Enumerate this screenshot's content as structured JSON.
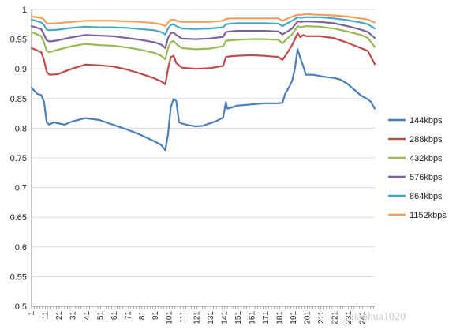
{
  "chart_data": {
    "type": "line",
    "title": "",
    "xlabel": "",
    "ylabel": "",
    "ylim": [
      0.5,
      1.0
    ],
    "xlim": [
      1,
      250
    ],
    "yticks": [
      "0.5",
      "0.55",
      "0.6",
      "0.65",
      "0.7",
      "0.75",
      "0.8",
      "0.85",
      "0.9",
      "0.95",
      "1"
    ],
    "yticks_values": [
      0.5,
      0.55,
      0.6,
      0.65,
      0.7,
      0.75,
      0.8,
      0.85,
      0.9,
      0.95,
      1.0
    ],
    "xticks": [
      "1",
      "11",
      "21",
      "31",
      "41",
      "51",
      "61",
      "71",
      "81",
      "91",
      "101",
      "111",
      "121",
      "131",
      "141",
      "151",
      "161",
      "171",
      "181",
      "191",
      "201",
      "211",
      "221",
      "231",
      "241"
    ],
    "grid": "horizontal",
    "legend_position": "right",
    "series": [
      {
        "name": "144kbps",
        "color": "#4a7ebb",
        "points": [
          [
            1,
            0.868
          ],
          [
            5,
            0.858
          ],
          [
            8,
            0.856
          ],
          [
            10,
            0.845
          ],
          [
            12,
            0.81
          ],
          [
            14,
            0.806
          ],
          [
            17,
            0.81
          ],
          [
            21,
            0.808
          ],
          [
            25,
            0.806
          ],
          [
            30,
            0.811
          ],
          [
            40,
            0.817
          ],
          [
            50,
            0.814
          ],
          [
            60,
            0.806
          ],
          [
            70,
            0.798
          ],
          [
            80,
            0.789
          ],
          [
            90,
            0.778
          ],
          [
            95,
            0.772
          ],
          [
            98,
            0.763
          ],
          [
            100,
            0.79
          ],
          [
            102,
            0.835
          ],
          [
            104,
            0.849
          ],
          [
            106,
            0.846
          ],
          [
            108,
            0.81
          ],
          [
            110,
            0.808
          ],
          [
            115,
            0.805
          ],
          [
            120,
            0.803
          ],
          [
            125,
            0.804
          ],
          [
            130,
            0.808
          ],
          [
            135,
            0.812
          ],
          [
            140,
            0.818
          ],
          [
            142,
            0.844
          ],
          [
            143,
            0.833
          ],
          [
            145,
            0.834
          ],
          [
            150,
            0.838
          ],
          [
            160,
            0.84
          ],
          [
            170,
            0.842
          ],
          [
            180,
            0.842
          ],
          [
            183,
            0.843
          ],
          [
            185,
            0.858
          ],
          [
            188,
            0.87
          ],
          [
            190,
            0.88
          ],
          [
            192,
            0.9
          ],
          [
            194,
            0.933
          ],
          [
            196,
            0.918
          ],
          [
            198,
            0.905
          ],
          [
            200,
            0.89
          ],
          [
            205,
            0.89
          ],
          [
            210,
            0.888
          ],
          [
            215,
            0.886
          ],
          [
            220,
            0.885
          ],
          [
            225,
            0.882
          ],
          [
            230,
            0.875
          ],
          [
            235,
            0.865
          ],
          [
            240,
            0.855
          ],
          [
            244,
            0.85
          ],
          [
            247,
            0.845
          ],
          [
            250,
            0.833
          ]
        ]
      },
      {
        "name": "288kbps",
        "color": "#be4b48",
        "points": [
          [
            1,
            0.935
          ],
          [
            8,
            0.928
          ],
          [
            10,
            0.915
          ],
          [
            12,
            0.895
          ],
          [
            14,
            0.89
          ],
          [
            20,
            0.891
          ],
          [
            30,
            0.9
          ],
          [
            40,
            0.907
          ],
          [
            50,
            0.906
          ],
          [
            60,
            0.904
          ],
          [
            70,
            0.899
          ],
          [
            80,
            0.892
          ],
          [
            90,
            0.884
          ],
          [
            95,
            0.879
          ],
          [
            98,
            0.874
          ],
          [
            100,
            0.9
          ],
          [
            102,
            0.92
          ],
          [
            104,
            0.922
          ],
          [
            106,
            0.91
          ],
          [
            110,
            0.902
          ],
          [
            120,
            0.9
          ],
          [
            130,
            0.901
          ],
          [
            140,
            0.905
          ],
          [
            142,
            0.92
          ],
          [
            145,
            0.921
          ],
          [
            150,
            0.922
          ],
          [
            160,
            0.923
          ],
          [
            170,
            0.922
          ],
          [
            180,
            0.92
          ],
          [
            183,
            0.915
          ],
          [
            186,
            0.925
          ],
          [
            190,
            0.94
          ],
          [
            194,
            0.96
          ],
          [
            196,
            0.953
          ],
          [
            198,
            0.957
          ],
          [
            200,
            0.955
          ],
          [
            210,
            0.955
          ],
          [
            220,
            0.952
          ],
          [
            230,
            0.944
          ],
          [
            240,
            0.935
          ],
          [
            245,
            0.93
          ],
          [
            250,
            0.908
          ]
        ]
      },
      {
        "name": "432kbps",
        "color": "#98b954",
        "points": [
          [
            1,
            0.962
          ],
          [
            8,
            0.955
          ],
          [
            10,
            0.945
          ],
          [
            12,
            0.93
          ],
          [
            14,
            0.928
          ],
          [
            20,
            0.932
          ],
          [
            30,
            0.938
          ],
          [
            40,
            0.942
          ],
          [
            50,
            0.94
          ],
          [
            60,
            0.939
          ],
          [
            70,
            0.936
          ],
          [
            80,
            0.932
          ],
          [
            90,
            0.927
          ],
          [
            95,
            0.922
          ],
          [
            98,
            0.916
          ],
          [
            100,
            0.935
          ],
          [
            102,
            0.945
          ],
          [
            104,
            0.947
          ],
          [
            106,
            0.942
          ],
          [
            110,
            0.935
          ],
          [
            120,
            0.933
          ],
          [
            130,
            0.934
          ],
          [
            140,
            0.938
          ],
          [
            142,
            0.947
          ],
          [
            145,
            0.948
          ],
          [
            150,
            0.949
          ],
          [
            160,
            0.95
          ],
          [
            170,
            0.95
          ],
          [
            180,
            0.949
          ],
          [
            183,
            0.943
          ],
          [
            186,
            0.95
          ],
          [
            190,
            0.958
          ],
          [
            194,
            0.972
          ],
          [
            196,
            0.97
          ],
          [
            200,
            0.972
          ],
          [
            210,
            0.971
          ],
          [
            220,
            0.968
          ],
          [
            230,
            0.963
          ],
          [
            240,
            0.957
          ],
          [
            245,
            0.952
          ],
          [
            250,
            0.937
          ]
        ]
      },
      {
        "name": "576kbps",
        "color": "#7d60a0",
        "points": [
          [
            1,
            0.972
          ],
          [
            8,
            0.967
          ],
          [
            10,
            0.958
          ],
          [
            12,
            0.948
          ],
          [
            14,
            0.946
          ],
          [
            20,
            0.948
          ],
          [
            30,
            0.953
          ],
          [
            40,
            0.957
          ],
          [
            50,
            0.956
          ],
          [
            60,
            0.955
          ],
          [
            70,
            0.952
          ],
          [
            80,
            0.949
          ],
          [
            90,
            0.945
          ],
          [
            95,
            0.941
          ],
          [
            98,
            0.935
          ],
          [
            100,
            0.952
          ],
          [
            102,
            0.96
          ],
          [
            104,
            0.961
          ],
          [
            106,
            0.957
          ],
          [
            110,
            0.951
          ],
          [
            120,
            0.95
          ],
          [
            130,
            0.951
          ],
          [
            140,
            0.954
          ],
          [
            142,
            0.962
          ],
          [
            145,
            0.963
          ],
          [
            150,
            0.964
          ],
          [
            160,
            0.964
          ],
          [
            170,
            0.964
          ],
          [
            180,
            0.963
          ],
          [
            183,
            0.958
          ],
          [
            186,
            0.962
          ],
          [
            190,
            0.968
          ],
          [
            194,
            0.98
          ],
          [
            196,
            0.979
          ],
          [
            200,
            0.98
          ],
          [
            210,
            0.979
          ],
          [
            220,
            0.977
          ],
          [
            230,
            0.972
          ],
          [
            240,
            0.966
          ],
          [
            245,
            0.962
          ],
          [
            250,
            0.952
          ]
        ]
      },
      {
        "name": "864kbps",
        "color": "#46aac4",
        "points": [
          [
            1,
            0.983
          ],
          [
            8,
            0.978
          ],
          [
            10,
            0.974
          ],
          [
            12,
            0.966
          ],
          [
            14,
            0.965
          ],
          [
            20,
            0.966
          ],
          [
            30,
            0.969
          ],
          [
            40,
            0.971
          ],
          [
            50,
            0.97
          ],
          [
            60,
            0.97
          ],
          [
            70,
            0.969
          ],
          [
            80,
            0.967
          ],
          [
            90,
            0.965
          ],
          [
            95,
            0.962
          ],
          [
            98,
            0.958
          ],
          [
            100,
            0.968
          ],
          [
            102,
            0.974
          ],
          [
            104,
            0.975
          ],
          [
            106,
            0.972
          ],
          [
            110,
            0.968
          ],
          [
            120,
            0.967
          ],
          [
            130,
            0.968
          ],
          [
            140,
            0.97
          ],
          [
            142,
            0.975
          ],
          [
            145,
            0.976
          ],
          [
            150,
            0.977
          ],
          [
            160,
            0.977
          ],
          [
            170,
            0.977
          ],
          [
            180,
            0.976
          ],
          [
            183,
            0.972
          ],
          [
            186,
            0.976
          ],
          [
            190,
            0.981
          ],
          [
            194,
            0.987
          ],
          [
            196,
            0.986
          ],
          [
            200,
            0.987
          ],
          [
            210,
            0.987
          ],
          [
            220,
            0.985
          ],
          [
            230,
            0.982
          ],
          [
            240,
            0.978
          ],
          [
            245,
            0.975
          ],
          [
            250,
            0.968
          ]
        ]
      },
      {
        "name": "1152kbps",
        "color": "#f59d56",
        "points": [
          [
            1,
            0.988
          ],
          [
            8,
            0.986
          ],
          [
            10,
            0.983
          ],
          [
            12,
            0.977
          ],
          [
            14,
            0.976
          ],
          [
            20,
            0.977
          ],
          [
            30,
            0.979
          ],
          [
            40,
            0.981
          ],
          [
            50,
            0.981
          ],
          [
            60,
            0.981
          ],
          [
            70,
            0.98
          ],
          [
            80,
            0.979
          ],
          [
            90,
            0.977
          ],
          [
            95,
            0.975
          ],
          [
            98,
            0.972
          ],
          [
            100,
            0.978
          ],
          [
            102,
            0.982
          ],
          [
            104,
            0.983
          ],
          [
            106,
            0.981
          ],
          [
            110,
            0.979
          ],
          [
            120,
            0.979
          ],
          [
            130,
            0.979
          ],
          [
            140,
            0.981
          ],
          [
            142,
            0.984
          ],
          [
            145,
            0.985
          ],
          [
            150,
            0.985
          ],
          [
            160,
            0.985
          ],
          [
            170,
            0.985
          ],
          [
            180,
            0.985
          ],
          [
            183,
            0.981
          ],
          [
            186,
            0.984
          ],
          [
            190,
            0.988
          ],
          [
            194,
            0.991
          ],
          [
            196,
            0.991
          ],
          [
            200,
            0.992
          ],
          [
            210,
            0.991
          ],
          [
            220,
            0.99
          ],
          [
            230,
            0.988
          ],
          [
            240,
            0.985
          ],
          [
            245,
            0.983
          ],
          [
            250,
            0.978
          ]
        ]
      }
    ],
    "watermark": "xiaohua1020"
  }
}
